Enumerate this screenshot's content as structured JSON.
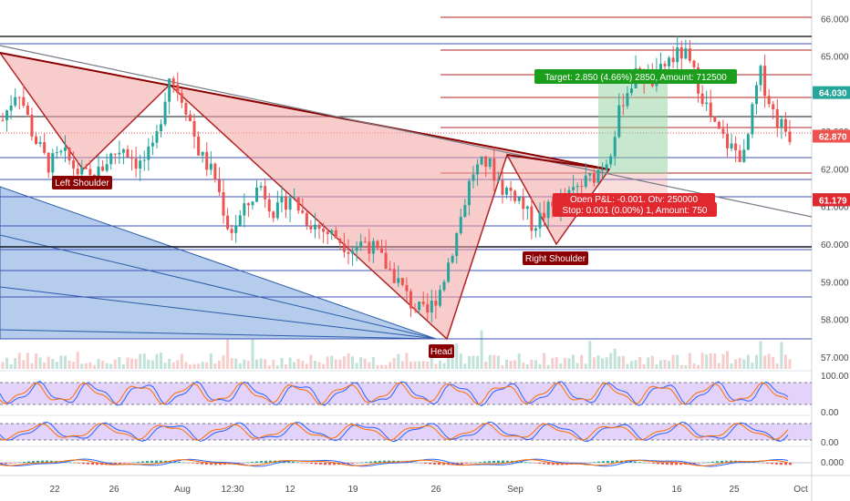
{
  "chart_data": {
    "type": "candlestick",
    "price_axis": {
      "ticks": [
        "66.000",
        "65.000",
        "64.000",
        "63.000",
        "62.000",
        "61.000",
        "60.000",
        "59.000",
        "58.000",
        "57.000"
      ],
      "tick_values": [
        66,
        65,
        64,
        63,
        62,
        61,
        60,
        59,
        58,
        57
      ],
      "range": [
        56.85,
        66.25
      ],
      "labels": [
        {
          "text": "64.030",
          "value": 64.03,
          "color": "#26a69a"
        },
        {
          "text": "62.870",
          "value": 62.87,
          "color": "#ef5350"
        },
        {
          "text": "61.180",
          "value": 61.18,
          "color": "#131722"
        },
        {
          "text": "61.179",
          "value": 61.179,
          "color": "#e0282e"
        }
      ]
    },
    "time_axis": {
      "labels": [
        "22",
        "26",
        "Aug",
        "12:30",
        "12",
        "19",
        "26",
        "Sep",
        "9",
        "16",
        "25",
        "Oct"
      ]
    },
    "close_series": [
      63.3,
      64.2,
      62.9,
      62.1,
      62.4,
      61.9,
      61.7,
      62.3,
      62.6,
      62.1,
      62.5,
      64.5,
      63.8,
      62.4,
      61.8,
      60.3,
      60.9,
      61.6,
      60.8,
      61.3,
      60.7,
      60.4,
      60.2,
      59.9,
      60.1,
      59.6,
      59.1,
      58.4,
      58.1,
      58.9,
      60.3,
      61.9,
      62.2,
      61.5,
      61.3,
      60.5,
      60.9,
      61.1,
      61.5,
      61.8,
      62.3,
      63.9,
      64.6,
      64.3,
      64.9,
      65.1,
      64.2,
      63.1,
      62.6,
      62.3,
      64.6,
      63.4,
      62.9
    ],
    "indicators": [
      {
        "name": "stoch-rsi",
        "ticks": [
          "100.00",
          "0.00"
        ]
      },
      {
        "name": "stochastic",
        "ticks": [
          "0.00"
        ]
      },
      {
        "name": "macd",
        "ticks": [
          "0.000"
        ]
      }
    ],
    "patterns": {
      "left_shoulder": "Left Shoulder",
      "head": "Head",
      "right_shoulder": "Right Shoulder"
    },
    "position": {
      "target": "Target: 2.850 (4.66%) 2850, Amount: 712500",
      "stop": "Stop: 0.001 (0.00%) 1, Amount: 750",
      "open": "Open P&L: -0.001, Qty: 250000"
    },
    "colors": {
      "up": "#26a69a",
      "down": "#ef5350",
      "grid_red": "#b22222",
      "grid_blue": "#3f51b5",
      "neckline": "#8b0000"
    }
  }
}
